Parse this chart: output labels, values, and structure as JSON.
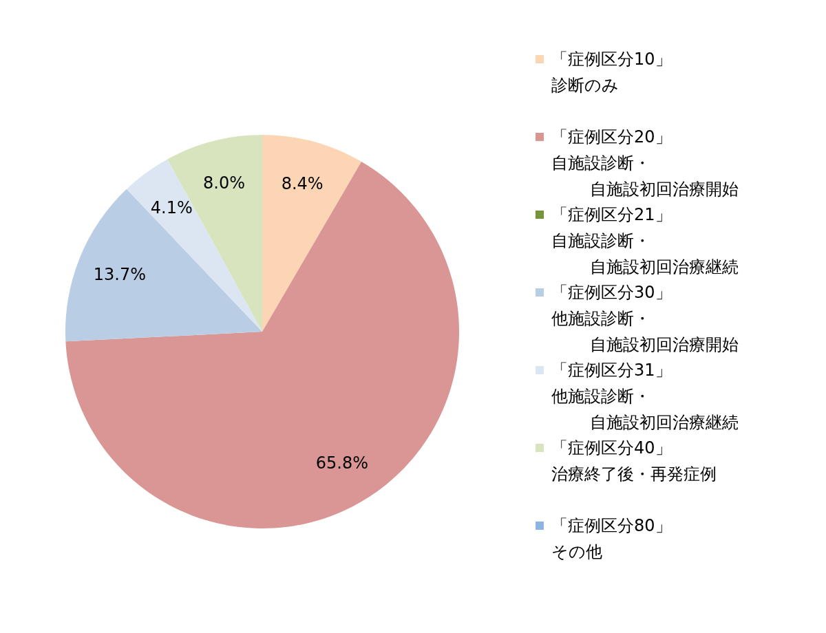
{
  "chart_data": {
    "type": "pie",
    "categories": [
      "「症例区分10」診断のみ",
      "「症例区分20」自施設診断・自施設初回治療開始",
      "「症例区分21」自施設診断・自施設初回治療継続",
      "「症例区分30」他施設診断・自施設初回治療開始",
      "「症例区分31」他施設診断・自施設初回治療継続",
      "「症例区分40」治療終了後・再発症例",
      "「症例区分80」その他"
    ],
    "values": [
      8.4,
      65.8,
      0,
      13.7,
      4.1,
      8.0,
      0
    ],
    "colors": [
      "#fcd5b5",
      "#d99694",
      "#77933c",
      "#b9cde5",
      "#dce6f2",
      "#d7e4bd",
      "#8eb4e3"
    ],
    "value_labels": [
      "8.4%",
      "65.8%",
      null,
      "13.7%",
      "4.1%",
      "8.0%",
      null
    ],
    "legend": "right"
  }
}
